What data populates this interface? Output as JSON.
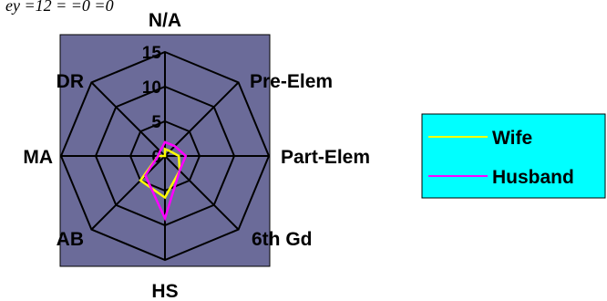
{
  "caption_fragment": "ey    =12       =        =0        =0",
  "chart_data": {
    "type": "radar",
    "axes": [
      "N/A",
      "Pre-Elem",
      "Part-Elem",
      "6th Gd",
      "HS",
      "AB",
      "MA",
      "DR"
    ],
    "rlim": [
      0,
      15
    ],
    "ticks": [
      "0",
      "5",
      "10",
      "15"
    ],
    "series": [
      {
        "name": "Wife",
        "color": "#ffff00",
        "values": [
          1,
          1,
          2,
          3,
          6,
          5,
          1,
          0
        ]
      },
      {
        "name": "Husband",
        "color": "#ff00ff",
        "values": [
          2,
          2,
          3,
          3,
          9,
          4,
          1,
          1
        ]
      }
    ],
    "legend": {
      "position": "right",
      "background": "#00ffff"
    },
    "plot_background": "#6b6b99",
    "grid": true
  }
}
